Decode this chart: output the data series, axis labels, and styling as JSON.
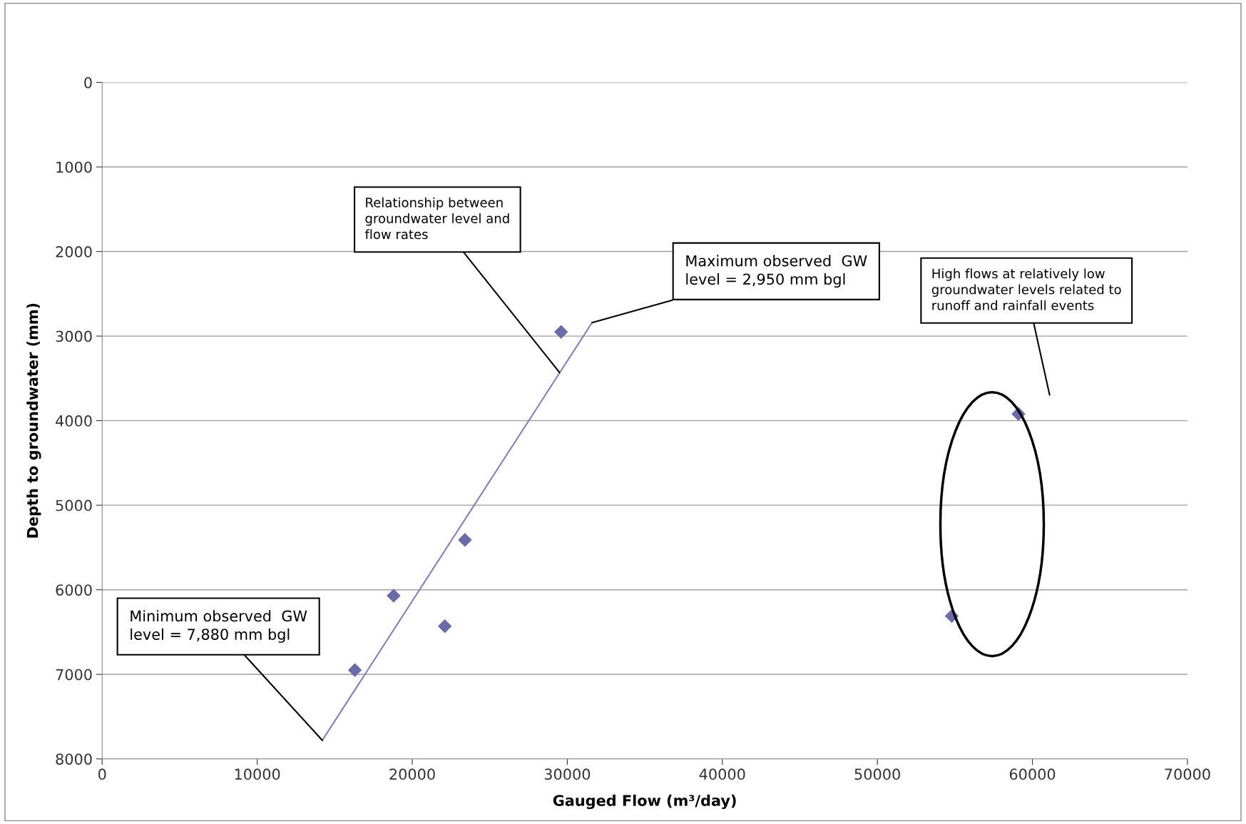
{
  "chart_data": {
    "type": "scatter",
    "xlabel": "Gauged Flow (m³/day)",
    "ylabel": "Depth to groundwater (mm)",
    "xlim": [
      0,
      70000
    ],
    "xticks": [
      0,
      10000,
      20000,
      30000,
      40000,
      50000,
      60000,
      70000
    ],
    "ylim": [
      8000,
      0
    ],
    "yticks": [
      0,
      1000,
      2000,
      3000,
      4000,
      5000,
      6000,
      7000,
      8000
    ],
    "grid": "y",
    "legend": false,
    "series": [
      {
        "marker": "diamond",
        "color": "#6b6ba8",
        "x": [
          16300,
          18800,
          22100,
          23400,
          29600,
          54800,
          59100
        ],
        "values": [
          6950,
          6070,
          6430,
          5410,
          2950,
          6310,
          3920
        ]
      },
      {
        "type": "line",
        "color": "#8080b4",
        "x": [
          14200,
          31600
        ],
        "values": [
          7780,
          2840
        ]
      }
    ],
    "annotations": [
      {
        "text": "Relationship between\ngroundwater level and\nflow rates",
        "x": 29500,
        "y": 3430
      },
      {
        "text": "Maximum observed  GW\nlevel = 2,950 mm bgl",
        "x": 31600,
        "y": 2840
      },
      "High flows at relatively low\ngroundwater levels related to\nrunoff and rainfall events",
      {
        "text": "Minimum observed  GW\nlevel = 7,880 mm bgl",
        "x": 14200,
        "y": 7780
      }
    ]
  }
}
